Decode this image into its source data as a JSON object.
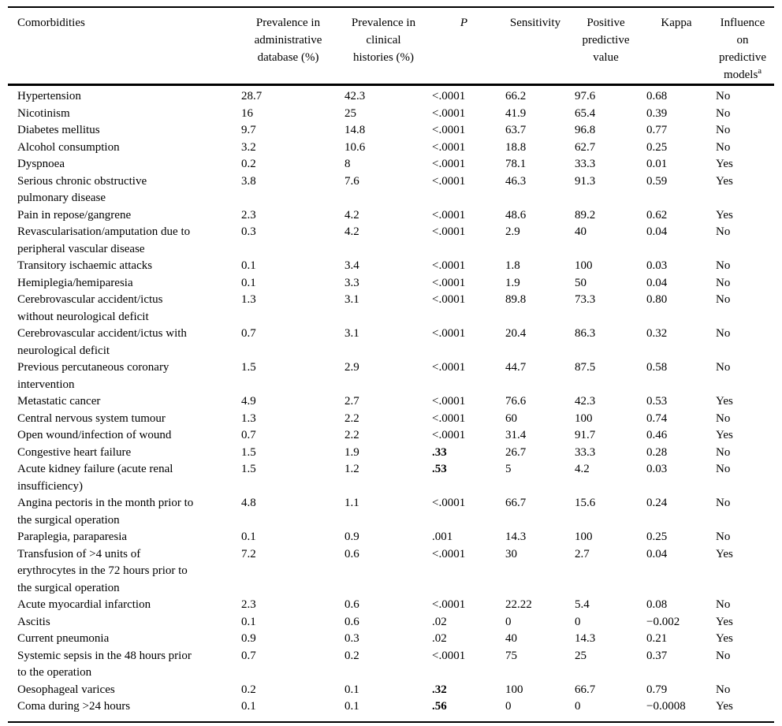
{
  "table": {
    "columns": [
      {
        "label": "Comorbidities"
      },
      {
        "label": "Prevalence in\nadministrative\ndatabase (%)"
      },
      {
        "label": "Prevalence in\nclinical\nhistories (%)"
      },
      {
        "label": "P"
      },
      {
        "label": "Sensitivity"
      },
      {
        "label": "Positive\npredictive\nvalue"
      },
      {
        "label": "Kappa"
      },
      {
        "label": "Influence\non\npredictive\nmodels",
        "superscript": "a"
      }
    ],
    "rows": [
      {
        "comorbidity": "Hypertension",
        "prev_admin": "28.7",
        "prev_clinical": "42.3",
        "p": "<.0001",
        "p_bold": false,
        "sensitivity": "66.2",
        "ppv": "97.6",
        "kappa": "0.68",
        "influence": "No"
      },
      {
        "comorbidity": "Nicotinism",
        "prev_admin": "16",
        "prev_clinical": "25",
        "p": "<.0001",
        "p_bold": false,
        "sensitivity": "41.9",
        "ppv": "65.4",
        "kappa": "0.39",
        "influence": "No"
      },
      {
        "comorbidity": "Diabetes mellitus",
        "prev_admin": "9.7",
        "prev_clinical": "14.8",
        "p": "<.0001",
        "p_bold": false,
        "sensitivity": "63.7",
        "ppv": "96.8",
        "kappa": "0.77",
        "influence": "No"
      },
      {
        "comorbidity": "Alcohol consumption",
        "prev_admin": "3.2",
        "prev_clinical": "10.6",
        "p": "<.0001",
        "p_bold": false,
        "sensitivity": "18.8",
        "ppv": "62.7",
        "kappa": "0.25",
        "influence": "No"
      },
      {
        "comorbidity": "Dyspnoea",
        "prev_admin": "0.2",
        "prev_clinical": "8",
        "p": "<.0001",
        "p_bold": false,
        "sensitivity": "78.1",
        "ppv": "33.3",
        "kappa": "0.01",
        "influence": "Yes"
      },
      {
        "comorbidity": "Serious chronic obstructive\npulmonary disease",
        "prev_admin": "3.8",
        "prev_clinical": "7.6",
        "p": "<.0001",
        "p_bold": false,
        "sensitivity": "46.3",
        "ppv": "91.3",
        "kappa": "0.59",
        "influence": "Yes"
      },
      {
        "comorbidity": "Pain in repose/gangrene",
        "prev_admin": "2.3",
        "prev_clinical": "4.2",
        "p": "<.0001",
        "p_bold": false,
        "sensitivity": "48.6",
        "ppv": "89.2",
        "kappa": "0.62",
        "influence": "Yes"
      },
      {
        "comorbidity": "Revascularisation/amputation due to\nperipheral vascular disease",
        "prev_admin": "0.3",
        "prev_clinical": "4.2",
        "p": "<.0001",
        "p_bold": false,
        "sensitivity": "2.9",
        "ppv": "40",
        "kappa": "0.04",
        "influence": "No"
      },
      {
        "comorbidity": "Transitory ischaemic attacks",
        "prev_admin": "0.1",
        "prev_clinical": "3.4",
        "p": "<.0001",
        "p_bold": false,
        "sensitivity": "1.8",
        "ppv": "100",
        "kappa": "0.03",
        "influence": "No"
      },
      {
        "comorbidity": "Hemiplegia/hemiparesia",
        "prev_admin": "0.1",
        "prev_clinical": "3.3",
        "p": "<.0001",
        "p_bold": false,
        "sensitivity": "1.9",
        "ppv": "50",
        "kappa": "0.04",
        "influence": "No"
      },
      {
        "comorbidity": "Cerebrovascular accident/ictus\nwithout neurological deficit",
        "prev_admin": "1.3",
        "prev_clinical": "3.1",
        "p": "<.0001",
        "p_bold": false,
        "sensitivity": "89.8",
        "ppv": "73.3",
        "kappa": "0.80",
        "influence": "No"
      },
      {
        "comorbidity": "Cerebrovascular accident/ictus with\nneurological deficit",
        "prev_admin": "0.7",
        "prev_clinical": "3.1",
        "p": "<.0001",
        "p_bold": false,
        "sensitivity": "20.4",
        "ppv": "86.3",
        "kappa": "0.32",
        "influence": "No"
      },
      {
        "comorbidity": "Previous percutaneous coronary\nintervention",
        "prev_admin": "1.5",
        "prev_clinical": "2.9",
        "p": "<.0001",
        "p_bold": false,
        "sensitivity": "44.7",
        "ppv": "87.5",
        "kappa": "0.58",
        "influence": "No"
      },
      {
        "comorbidity": "Metastatic cancer",
        "prev_admin": "4.9",
        "prev_clinical": "2.7",
        "p": "<.0001",
        "p_bold": false,
        "sensitivity": "76.6",
        "ppv": "42.3",
        "kappa": "0.53",
        "influence": "Yes"
      },
      {
        "comorbidity": "Central nervous system tumour",
        "prev_admin": "1.3",
        "prev_clinical": "2.2",
        "p": "<.0001",
        "p_bold": false,
        "sensitivity": "60",
        "ppv": "100",
        "kappa": "0.74",
        "influence": "No"
      },
      {
        "comorbidity": "Open wound/infection of wound",
        "prev_admin": "0.7",
        "prev_clinical": "2.2",
        "p": "<.0001",
        "p_bold": false,
        "sensitivity": "31.4",
        "ppv": "91.7",
        "kappa": "0.46",
        "influence": "Yes"
      },
      {
        "comorbidity": "Congestive heart failure",
        "prev_admin": "1.5",
        "prev_clinical": "1.9",
        "p": ".33",
        "p_bold": true,
        "sensitivity": "26.7",
        "ppv": "33.3",
        "kappa": "0.28",
        "influence": "No"
      },
      {
        "comorbidity": "Acute kidney failure (acute renal\ninsufficiency)",
        "prev_admin": "1.5",
        "prev_clinical": "1.2",
        "p": ".53",
        "p_bold": true,
        "sensitivity": "5",
        "ppv": "4.2",
        "kappa": "0.03",
        "influence": "No"
      },
      {
        "comorbidity": "Angina pectoris in the month prior to\nthe surgical operation",
        "prev_admin": "4.8",
        "prev_clinical": "1.1",
        "p": "<.0001",
        "p_bold": false,
        "sensitivity": "66.7",
        "ppv": "15.6",
        "kappa": "0.24",
        "influence": "No"
      },
      {
        "comorbidity": "Paraplegia, paraparesia",
        "prev_admin": "0.1",
        "prev_clinical": "0.9",
        "p": ".001",
        "p_bold": false,
        "sensitivity": "14.3",
        "ppv": "100",
        "kappa": "0.25",
        "influence": "No"
      },
      {
        "comorbidity": "Transfusion of >4 units of\nerythrocytes in the 72 hours prior to\nthe surgical operation",
        "prev_admin": "7.2",
        "prev_clinical": "0.6",
        "p": "<.0001",
        "p_bold": false,
        "sensitivity": "30",
        "ppv": "2.7",
        "kappa": "0.04",
        "influence": "Yes"
      },
      {
        "comorbidity": "Acute myocardial infarction",
        "prev_admin": "2.3",
        "prev_clinical": "0.6",
        "p": "<.0001",
        "p_bold": false,
        "sensitivity": "22.22",
        "ppv": "5.4",
        "kappa": "0.08",
        "influence": "No"
      },
      {
        "comorbidity": "Ascitis",
        "prev_admin": "0.1",
        "prev_clinical": "0.6",
        "p": ".02",
        "p_bold": false,
        "sensitivity": "0",
        "ppv": "0",
        "kappa": "−0.002",
        "influence": "Yes"
      },
      {
        "comorbidity": "Current pneumonia",
        "prev_admin": "0.9",
        "prev_clinical": "0.3",
        "p": ".02",
        "p_bold": false,
        "sensitivity": "40",
        "ppv": "14.3",
        "kappa": "0.21",
        "influence": "Yes"
      },
      {
        "comorbidity": "Systemic sepsis in the 48 hours prior\nto the operation",
        "prev_admin": "0.7",
        "prev_clinical": "0.2",
        "p": "<.0001",
        "p_bold": false,
        "sensitivity": "75",
        "ppv": "25",
        "kappa": "0.37",
        "influence": "No"
      },
      {
        "comorbidity": "Oesophageal varices",
        "prev_admin": "0.2",
        "prev_clinical": "0.1",
        "p": ".32",
        "p_bold": true,
        "sensitivity": "100",
        "ppv": "66.7",
        "kappa": "0.79",
        "influence": "No"
      },
      {
        "comorbidity": "Coma during >24 hours",
        "prev_admin": "0.1",
        "prev_clinical": "0.1",
        "p": ".56",
        "p_bold": true,
        "sensitivity": "0",
        "ppv": "0",
        "kappa": "−0.0008",
        "influence": "Yes"
      }
    ]
  }
}
